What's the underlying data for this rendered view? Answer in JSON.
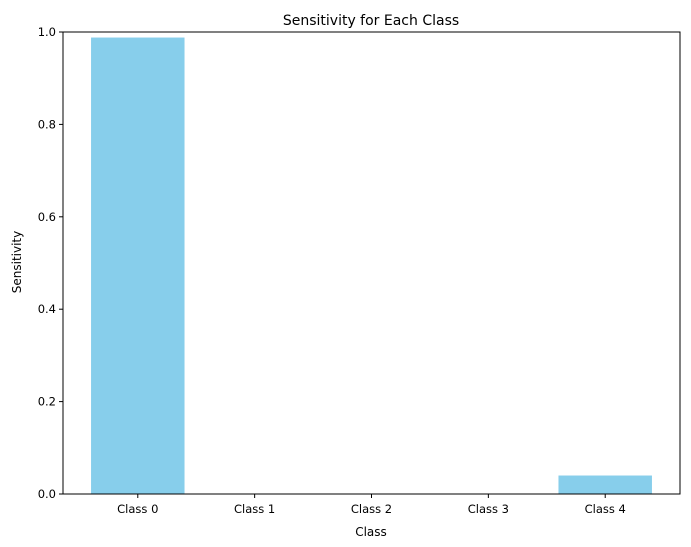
{
  "chart_data": {
    "type": "bar",
    "title": "Sensitivity for Each Class",
    "xlabel": "Class",
    "ylabel": "Sensitivity",
    "categories": [
      "Class 0",
      "Class 1",
      "Class 2",
      "Class 3",
      "Class 4"
    ],
    "values": [
      0.988,
      0.0,
      0.0,
      0.0,
      0.04
    ],
    "ylim": [
      0,
      1.0
    ],
    "yticks": [
      "0.0",
      "0.2",
      "0.4",
      "0.6",
      "0.8",
      "1.0"
    ],
    "grid": false,
    "bar_color": "#87ceeb"
  }
}
